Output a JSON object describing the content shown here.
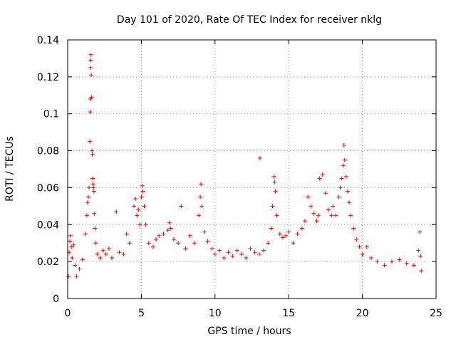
{
  "chart_data": {
    "type": "scatter",
    "title": "Day 101 of 2020, Rate Of TEC Index for receiver nklg",
    "xlabel": "GPS time / hours",
    "ylabel": "ROTI / TECUs",
    "xlim": [
      0,
      25
    ],
    "ylim": [
      0,
      0.14
    ],
    "xticks": [
      0,
      5,
      10,
      15,
      20,
      25
    ],
    "xtick_labels": [
      "0",
      "5",
      "10",
      "15",
      "20",
      "25"
    ],
    "yticks": [
      0,
      0.02,
      0.04,
      0.06,
      0.08,
      0.1,
      0.12,
      0.14
    ],
    "ytick_labels": [
      "0",
      "0.02",
      "0.04",
      "0.06",
      "0.08",
      "0.1",
      "0.12",
      "0.14"
    ],
    "grid": true,
    "marker": "+",
    "color": "#ff0000",
    "series": [
      {
        "name": "ROTI",
        "points": [
          [
            0.05,
            0.012
          ],
          [
            0.1,
            0.025
          ],
          [
            0.15,
            0.031
          ],
          [
            0.2,
            0.034
          ],
          [
            0.25,
            0.028
          ],
          [
            0.3,
            0.022
          ],
          [
            0.4,
            0.029
          ],
          [
            0.5,
            0.018
          ],
          [
            0.6,
            0.012
          ],
          [
            0.8,
            0.016
          ],
          [
            1.0,
            0.021
          ],
          [
            1.2,
            0.035
          ],
          [
            1.3,
            0.045
          ],
          [
            1.35,
            0.052
          ],
          [
            1.4,
            0.055
          ],
          [
            1.45,
            0.06
          ],
          [
            1.5,
            0.085
          ],
          [
            1.52,
            0.101
          ],
          [
            1.55,
            0.108
          ],
          [
            1.56,
            0.125
          ],
          [
            1.57,
            0.129
          ],
          [
            1.58,
            0.132
          ],
          [
            1.6,
            0.121
          ],
          [
            1.62,
            0.109
          ],
          [
            1.65,
            0.08
          ],
          [
            1.68,
            0.078
          ],
          [
            1.7,
            0.065
          ],
          [
            1.72,
            0.062
          ],
          [
            1.75,
            0.06
          ],
          [
            1.78,
            0.058
          ],
          [
            1.8,
            0.046
          ],
          [
            1.85,
            0.038
          ],
          [
            1.9,
            0.03
          ],
          [
            2.0,
            0.024
          ],
          [
            2.2,
            0.022
          ],
          [
            2.4,
            0.026
          ],
          [
            2.6,
            0.024
          ],
          [
            2.8,
            0.027
          ],
          [
            3.0,
            0.022
          ],
          [
            3.3,
            0.047
          ],
          [
            3.5,
            0.025
          ],
          [
            3.8,
            0.024
          ],
          [
            4.0,
            0.035
          ],
          [
            4.2,
            0.03
          ],
          [
            4.5,
            0.05
          ],
          [
            4.6,
            0.054
          ],
          [
            4.7,
            0.045
          ],
          [
            4.8,
            0.048
          ],
          [
            4.9,
            0.04
          ],
          [
            5.0,
            0.055
          ],
          [
            5.05,
            0.061
          ],
          [
            5.1,
            0.058
          ],
          [
            5.2,
            0.05
          ],
          [
            5.3,
            0.04
          ],
          [
            5.5,
            0.03
          ],
          [
            5.8,
            0.028
          ],
          [
            6.0,
            0.032
          ],
          [
            6.2,
            0.034
          ],
          [
            6.5,
            0.035
          ],
          [
            6.8,
            0.037
          ],
          [
            6.9,
            0.041
          ],
          [
            7.0,
            0.038
          ],
          [
            7.2,
            0.032
          ],
          [
            7.5,
            0.03
          ],
          [
            7.7,
            0.05
          ],
          [
            8.0,
            0.027
          ],
          [
            8.3,
            0.034
          ],
          [
            8.6,
            0.03
          ],
          [
            8.9,
            0.045
          ],
          [
            9.0,
            0.055
          ],
          [
            9.05,
            0.062
          ],
          [
            9.1,
            0.05
          ],
          [
            9.3,
            0.036
          ],
          [
            9.5,
            0.031
          ],
          [
            9.8,
            0.027
          ],
          [
            10.0,
            0.024
          ],
          [
            10.3,
            0.026
          ],
          [
            10.6,
            0.022
          ],
          [
            10.9,
            0.025
          ],
          [
            11.2,
            0.023
          ],
          [
            11.5,
            0.026
          ],
          [
            11.8,
            0.024
          ],
          [
            12.1,
            0.022
          ],
          [
            12.4,
            0.027
          ],
          [
            12.7,
            0.025
          ],
          [
            13.0,
            0.024
          ],
          [
            13.05,
            0.076
          ],
          [
            13.3,
            0.026
          ],
          [
            13.6,
            0.03
          ],
          [
            13.8,
            0.038
          ],
          [
            13.9,
            0.05
          ],
          [
            14.0,
            0.066
          ],
          [
            14.05,
            0.063
          ],
          [
            14.1,
            0.058
          ],
          [
            14.2,
            0.045
          ],
          [
            14.4,
            0.035
          ],
          [
            14.6,
            0.033
          ],
          [
            14.8,
            0.034
          ],
          [
            15.0,
            0.036
          ],
          [
            15.3,
            0.03
          ],
          [
            15.6,
            0.035
          ],
          [
            15.9,
            0.038
          ],
          [
            16.1,
            0.042
          ],
          [
            16.3,
            0.055
          ],
          [
            16.5,
            0.05
          ],
          [
            16.7,
            0.046
          ],
          [
            16.9,
            0.042
          ],
          [
            17.0,
            0.045
          ],
          [
            17.1,
            0.065
          ],
          [
            17.3,
            0.067
          ],
          [
            17.5,
            0.057
          ],
          [
            17.7,
            0.048
          ],
          [
            17.9,
            0.045
          ],
          [
            18.0,
            0.05
          ],
          [
            18.2,
            0.045
          ],
          [
            18.4,
            0.055
          ],
          [
            18.5,
            0.06
          ],
          [
            18.6,
            0.065
          ],
          [
            18.7,
            0.072
          ],
          [
            18.75,
            0.083
          ],
          [
            18.8,
            0.075
          ],
          [
            18.9,
            0.066
          ],
          [
            19.0,
            0.058
          ],
          [
            19.1,
            0.052
          ],
          [
            19.2,
            0.045
          ],
          [
            19.4,
            0.038
          ],
          [
            19.6,
            0.032
          ],
          [
            19.8,
            0.028
          ],
          [
            20.0,
            0.024
          ],
          [
            20.3,
            0.028
          ],
          [
            20.6,
            0.022
          ],
          [
            21.0,
            0.02
          ],
          [
            21.5,
            0.018
          ],
          [
            22.0,
            0.02
          ],
          [
            22.5,
            0.021
          ],
          [
            23.0,
            0.019
          ],
          [
            23.5,
            0.018
          ],
          [
            23.8,
            0.026
          ],
          [
            23.9,
            0.036
          ],
          [
            23.95,
            0.023
          ],
          [
            24.0,
            0.015
          ]
        ]
      }
    ]
  }
}
